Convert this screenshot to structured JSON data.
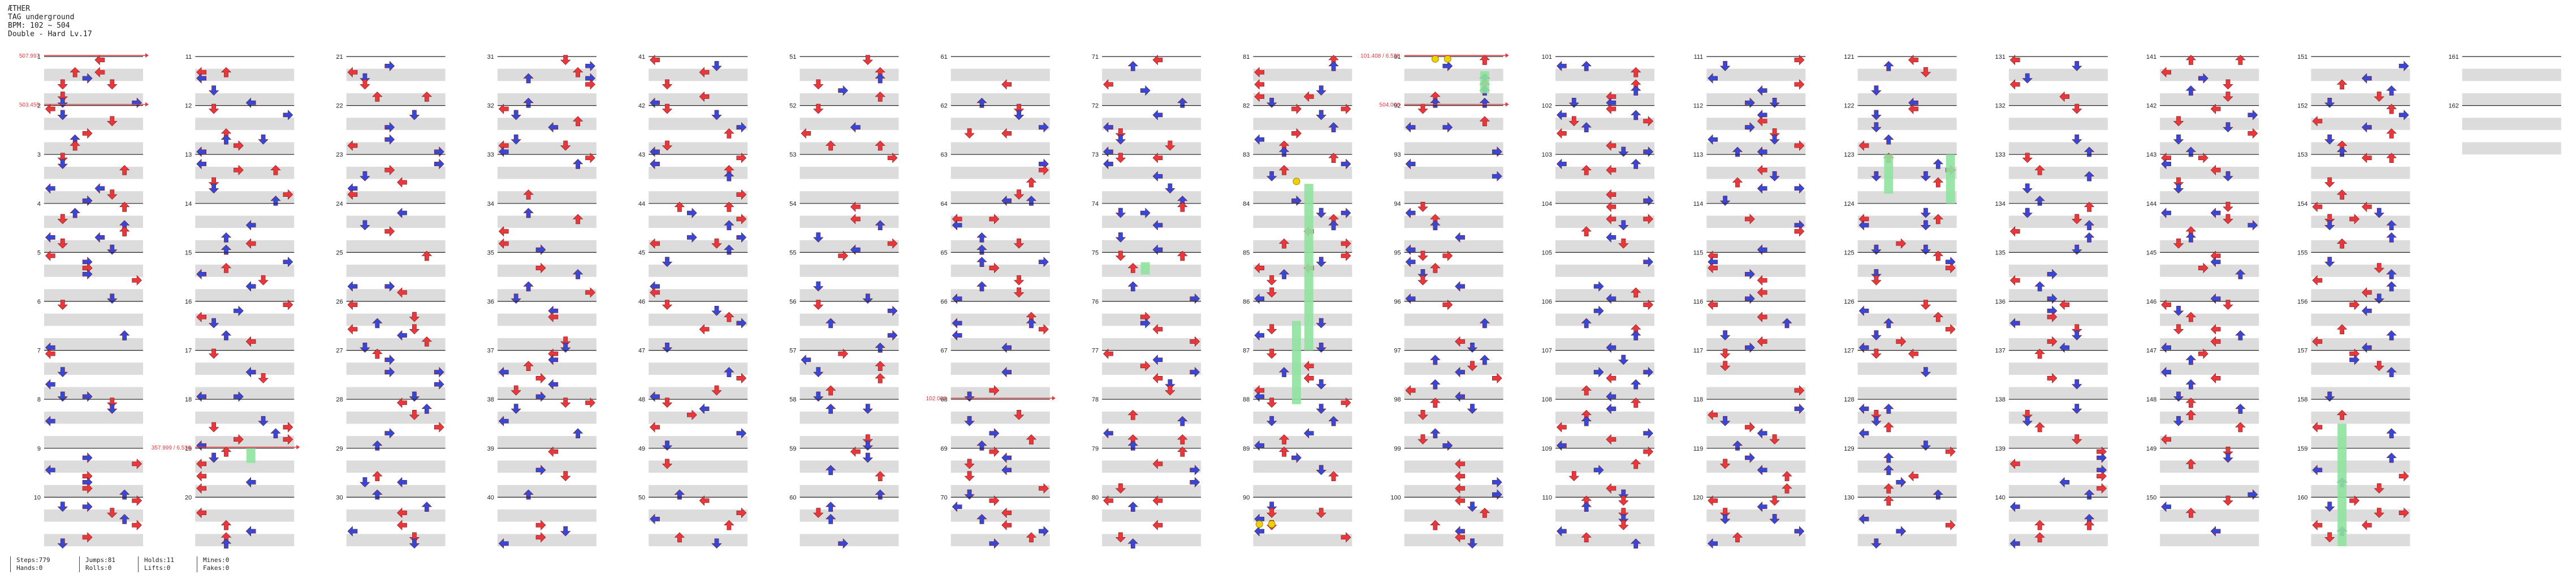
{
  "song": {
    "title": "ÆTHER",
    "artist": "TAG underground",
    "bpm": "BPM: 102 ~ 504",
    "chart": "Double - Hard Lv.17"
  },
  "columns": {
    "measure_labels": [
      [
        "1",
        "2",
        "3",
        "4",
        "5",
        "6",
        "7",
        "8",
        "9",
        "10"
      ],
      [
        "11",
        "12",
        "13",
        "14",
        "15",
        "16",
        "17",
        "18",
        "19",
        "20"
      ],
      [
        "21",
        "22",
        "23",
        "24",
        "25",
        "26",
        "27",
        "28",
        "29",
        "30"
      ],
      [
        "31",
        "32",
        "33",
        "34",
        "35",
        "36",
        "37",
        "38",
        "39",
        "40"
      ],
      [
        "41",
        "42",
        "43",
        "44",
        "45",
        "46",
        "47",
        "48",
        "49",
        "50"
      ],
      [
        "51",
        "52",
        "53",
        "54",
        "55",
        "56",
        "57",
        "58",
        "59",
        "60"
      ],
      [
        "61",
        "62",
        "63",
        "64",
        "65",
        "66",
        "67",
        "68",
        "69",
        "70"
      ],
      [
        "71",
        "72",
        "73",
        "74",
        "75",
        "76",
        "77",
        "78",
        "79",
        "80"
      ],
      [
        "81",
        "82",
        "83",
        "84",
        "85",
        "86",
        "87",
        "88",
        "89",
        "90"
      ],
      [
        "91",
        "92",
        "93",
        "94",
        "95",
        "96",
        "97",
        "98",
        "99",
        "100"
      ],
      [
        "101",
        "102",
        "103",
        "104",
        "105",
        "106",
        "107",
        "108",
        "109",
        "110"
      ],
      [
        "111",
        "112",
        "113",
        "114",
        "115",
        "116",
        "117",
        "118",
        "119",
        "120"
      ],
      [
        "121",
        "122",
        "123",
        "124",
        "125",
        "126",
        "127",
        "128",
        "129",
        "130"
      ],
      [
        "131",
        "132",
        "133",
        "134",
        "135",
        "136",
        "137",
        "138",
        "139",
        "140"
      ],
      [
        "141",
        "142",
        "143",
        "144",
        "145",
        "146",
        "147",
        "148",
        "149",
        "150"
      ],
      [
        "151",
        "152",
        "153",
        "154",
        "155",
        "156",
        "157",
        "158",
        "159",
        "160"
      ],
      [
        "161",
        "162"
      ]
    ],
    "bpm_markers": [
      {
        "column": 0,
        "measure": 0,
        "text": "507.997"
      },
      {
        "column": 0,
        "measure": 1,
        "text": "503.455"
      },
      {
        "column": 1,
        "measure": 8,
        "text": "357.999 / 6.536"
      },
      {
        "column": 6,
        "measure": 7,
        "text": "102.000"
      },
      {
        "column": 9,
        "measure": 0,
        "text": "101.408 / 6.526"
      },
      {
        "column": 9,
        "measure": 1,
        "text": "504.000"
      }
    ]
  },
  "colors": {
    "quarter_arrow": "#e8383c",
    "eighth_arrow": "#3548d6",
    "hold": "#8fe3a0",
    "mine_shock": "#f0d000",
    "stop_line": "#e8383c",
    "measure_band": "#dcdcdc",
    "measure_line": "#222222"
  },
  "stats": [
    {
      "line1": "Steps:779",
      "line2": "Hands:0"
    },
    {
      "line1": "Jumps:81",
      "line2": "Rolls:0"
    },
    {
      "line1": "Holds:11",
      "line2": "Lifts:0"
    },
    {
      "line1": "Mines:0",
      "line2": "Fakes:0"
    }
  ]
}
